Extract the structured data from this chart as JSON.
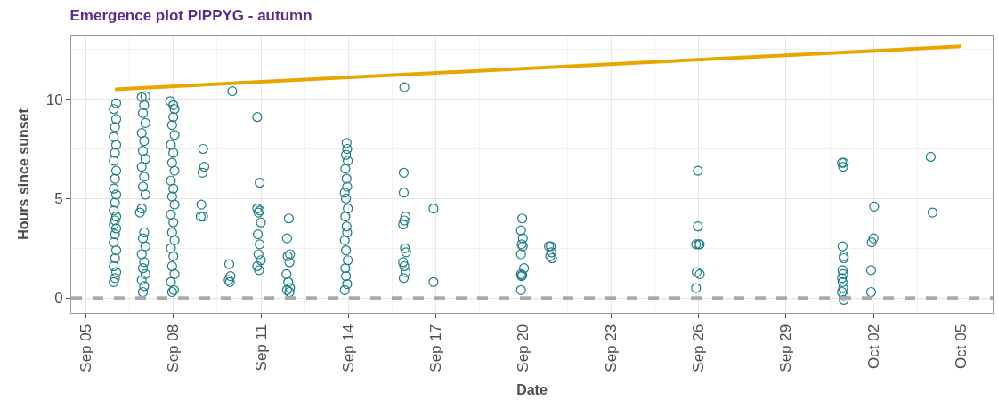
{
  "chart_data": {
    "type": "scatter",
    "title": "Emergence plot PIPPYG - autumn",
    "xlabel": "Date",
    "ylabel": "Hours since sunset",
    "xlim": [
      "--09-04T12:00",
      "--10-06T02:00"
    ],
    "xticks": [
      {
        "value": "--09-05",
        "label": "Sep 05"
      },
      {
        "value": "--09-08",
        "label": "Sep 08"
      },
      {
        "value": "--09-11",
        "label": "Sep 11"
      },
      {
        "value": "--09-14",
        "label": "Sep 14"
      },
      {
        "value": "--09-17",
        "label": "Sep 17"
      },
      {
        "value": "--09-20",
        "label": "Sep 20"
      },
      {
        "value": "--09-23",
        "label": "Sep 23"
      },
      {
        "value": "--09-26",
        "label": "Sep 26"
      },
      {
        "value": "--09-29",
        "label": "Sep 29"
      },
      {
        "value": "--10-02",
        "label": "Oct 02"
      },
      {
        "value": "--10-05",
        "label": "Oct 05"
      }
    ],
    "ylim": [
      -0.75,
      13.2
    ],
    "yticks": [
      0,
      5,
      10
    ],
    "grid": true,
    "marker": "circle",
    "ref_lines": [
      {
        "axis": "y",
        "value": 0,
        "color": "#aaaaaa",
        "line_style": "dashed"
      }
    ],
    "series": [
      {
        "type": "line",
        "color": "#eaa600",
        "marker": "none",
        "x": [
          "--09-06T00:00",
          "--10-05T00:00"
        ],
        "values": [
          10.5,
          12.65
        ]
      },
      {
        "color": "#1a7d85",
        "x": [
          "--09-05T23:00",
          "--09-06T00:00",
          "--09-06T01:00",
          "--09-05T23:00",
          "--09-06T00:00",
          "--09-06T01:00",
          "--09-05T23:00",
          "--09-06T00:00",
          "--09-06T01:00",
          "--09-05T23:00",
          "--09-06T00:00",
          "--09-06T01:00",
          "--09-05T23:00",
          "--09-06T00:00",
          "--09-06T01:00",
          "--09-05T23:00",
          "--09-06T00:00",
          "--09-06T01:00",
          "--09-05T23:00",
          "--09-06T00:00",
          "--09-06T01:00",
          "--09-05T23:00",
          "--09-06T00:00",
          "--09-06T01:00",
          "--09-05T23:00",
          "--09-06T01:00",
          "--09-06T23:00",
          "--09-07T00:00",
          "--09-06T22:00",
          "--09-07T01:00",
          "--09-06T23:00",
          "--09-07T00:00",
          "--09-06T22:00",
          "--09-07T01:00",
          "--09-06T23:00",
          "--09-07T00:00",
          "--09-06T20:30",
          "--09-06T22:00",
          "--09-07T01:00",
          "--09-06T23:00",
          "--09-07T00:00",
          "--09-06T22:00",
          "--09-07T01:00",
          "--09-06T23:00",
          "--09-07T00:00",
          "--09-06T22:00",
          "--09-07T01:00",
          "--09-06T23:00",
          "--09-07T00:00",
          "--09-06T22:00",
          "--09-07T01:00",
          "--09-07T23:00",
          "--09-08T00:30",
          "--09-07T22:00",
          "--09-08T01:00",
          "--09-07T23:00",
          "--09-08T00:00",
          "--09-07T22:00",
          "--09-08T01:00",
          "--09-07T23:00",
          "--09-08T00:00",
          "--09-07T22:00",
          "--09-08T01:00",
          "--09-07T23:00",
          "--09-08T00:00",
          "--09-07T22:00",
          "--09-08T01:00",
          "--09-07T23:00",
          "--09-08T00:00",
          "--09-07T22:00",
          "--09-08T01:00",
          "--09-07T23:00",
          "--09-08T00:00",
          "--09-08T01:00",
          "--09-08T00:00",
          "--09-07T21:30",
          "--09-09T00:30",
          "--09-09T01:30",
          "--09-09T00:00",
          "--09-08T23:00",
          "--09-08T22:30",
          "--09-09T00:30",
          "--09-10T00:30",
          "--09-09T22:00",
          "--09-09T23:00",
          "--09-09T22:30",
          "--09-09T21:30",
          "--09-10T21:00",
          "--09-10T23:00",
          "--09-10T21:00",
          "--09-10T23:00",
          "--09-10T22:00",
          "--09-11T00:00",
          "--09-10T21:30",
          "--09-10T23:00",
          "--09-10T22:00",
          "--09-11T00:00",
          "--09-10T21:00",
          "--09-10T22:30",
          "--09-11T23:00",
          "--09-11T21:30",
          "--09-12T00:00",
          "--09-11T22:00",
          "--09-11T23:30",
          "--09-11T21:00",
          "--09-11T22:30",
          "--09-12T00:00",
          "--09-11T21:30",
          "--09-11T23:30",
          "--09-13T21:00",
          "--09-13T23:00",
          "--09-13T22:00",
          "--09-13T21:30",
          "--09-13T23:30",
          "--09-13T22:00",
          "--09-13T21:00",
          "--09-13T23:00",
          "--09-13T22:30",
          "--09-13T21:30",
          "--09-13T23:30",
          "--09-13T22:00",
          "--09-13T21:00",
          "--09-13T23:00",
          "--09-13T22:30",
          "--09-13T21:30",
          "--09-13T23:30",
          "--09-13T22:00",
          "--09-13T23:00",
          "--09-13T22:30",
          "--09-15T22:00",
          "--09-15T21:30",
          "--09-15T21:30",
          "--09-15T23:00",
          "--09-15T22:00",
          "--09-15T21:00",
          "--09-15T22:30",
          "--09-15T23:30",
          "--09-15T21:00",
          "--09-15T22:00",
          "--09-15T23:00",
          "--09-15T21:30",
          "--09-16T22:00",
          "--09-16T22:00",
          "--09-19T23:00",
          "--09-19T22:00",
          "--09-19T23:30",
          "--09-19T22:30",
          "--09-19T23:30",
          "--09-19T22:00",
          "--09-20T00:30",
          "--09-19T22:00",
          "--09-19T23:00",
          "--09-19T22:30",
          "--09-19T22:00",
          "--09-20T21:00",
          "--09-20T22:30",
          "--09-20T23:00",
          "--09-20T22:00",
          "--09-20T23:30",
          "--09-25T23:30",
          "--09-25T23:30",
          "--09-25T22:00",
          "--09-26T00:00",
          "--09-26T01:00",
          "--09-25T22:30",
          "--09-26T01:00",
          "--09-25T22:00",
          "--09-30T22:00",
          "--09-30T23:30",
          "--09-30T23:00",
          "--09-30T22:30",
          "--09-30T23:30",
          "--09-30T23:30",
          "--09-30T22:30",
          "--09-30T23:00",
          "--09-30T22:00",
          "--09-30T22:30",
          "--09-30T23:00",
          "--09-30T22:00",
          "--09-30T23:30",
          "--09-30T23:30",
          "--10-02T00:30",
          "--10-02T00:00",
          "--10-01T22:30",
          "--10-01T22:00",
          "--10-01T22:00",
          "--10-03T23:00",
          "--10-04T00:30"
        ],
        "values": [
          0.8,
          1.0,
          1.3,
          1.6,
          2.0,
          2.4,
          2.8,
          3.2,
          3.5,
          3.7,
          3.9,
          4.1,
          4.4,
          4.8,
          5.2,
          5.5,
          6.0,
          6.4,
          6.9,
          7.3,
          7.7,
          8.1,
          8.6,
          9.0,
          9.5,
          9.8,
          0.3,
          0.6,
          0.9,
          1.2,
          1.5,
          1.8,
          2.2,
          2.6,
          3.0,
          3.3,
          4.3,
          4.5,
          5.2,
          5.6,
          6.1,
          6.6,
          7.0,
          7.4,
          7.9,
          8.3,
          8.8,
          9.3,
          9.7,
          10.1,
          10.15,
          0.3,
          0.4,
          0.8,
          1.2,
          1.6,
          2.1,
          2.5,
          2.9,
          3.3,
          3.8,
          4.2,
          4.7,
          5.1,
          5.5,
          5.9,
          6.4,
          6.8,
          7.3,
          7.7,
          8.2,
          8.7,
          9.1,
          9.5,
          9.7,
          9.9,
          7.5,
          6.6,
          6.3,
          4.7,
          4.1,
          4.1,
          10.4,
          1.7,
          1.1,
          0.8,
          0.9,
          9.1,
          5.8,
          4.5,
          4.4,
          4.3,
          3.8,
          3.2,
          2.7,
          2.2,
          1.9,
          1.6,
          1.4,
          4.0,
          3.0,
          2.2,
          2.1,
          1.8,
          1.2,
          0.8,
          0.5,
          0.4,
          0.3,
          0.4,
          0.7,
          1.1,
          1.5,
          1.9,
          2.4,
          2.9,
          3.3,
          3.6,
          4.1,
          4.5,
          5.0,
          5.3,
          5.6,
          6.0,
          6.5,
          6.9,
          7.2,
          7.5,
          7.8,
          10.6,
          6.3,
          5.3,
          4.1,
          3.9,
          3.7,
          2.5,
          2.3,
          1.8,
          1.6,
          1.3,
          1.0,
          4.5,
          0.8,
          4.0,
          3.4,
          3.0,
          2.7,
          2.6,
          2.2,
          1.5,
          1.2,
          1.15,
          1.1,
          0.4,
          2.6,
          2.6,
          2.3,
          2.1,
          2.0,
          6.4,
          3.6,
          2.7,
          2.7,
          2.7,
          1.3,
          1.2,
          0.5,
          6.8,
          6.8,
          6.6,
          2.6,
          2.1,
          2.0,
          1.4,
          1.2,
          1.0,
          0.8,
          0.5,
          0.3,
          0.1,
          -0.1,
          4.6,
          3.0,
          2.8,
          1.4,
          0.3,
          7.1,
          4.3
        ]
      }
    ]
  }
}
